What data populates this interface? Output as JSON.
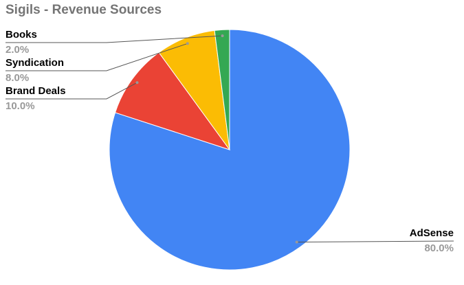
{
  "chart_data": {
    "type": "pie",
    "title": "Sigils - Revenue Sources",
    "categories": [
      "AdSense",
      "Brand Deals",
      "Syndication",
      "Books"
    ],
    "values": [
      80,
      10,
      8,
      2
    ],
    "value_labels": [
      "80.0%",
      "10.0%",
      "8.0%",
      "2.0%"
    ],
    "colors": [
      "#4285f4",
      "#ea4335",
      "#fbbc04",
      "#34a853"
    ]
  }
}
